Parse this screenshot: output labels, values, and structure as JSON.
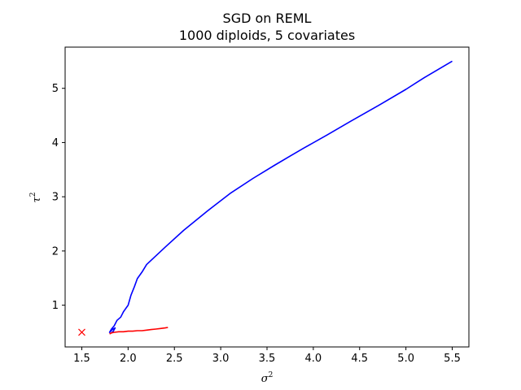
{
  "chart_data": {
    "type": "line",
    "title": "SGD on REML",
    "subtitle": "1000 diploids, 5 covariates",
    "xlabel": "σ",
    "xlabel_sup": "2",
    "ylabel": "τ",
    "ylabel_sup": "2",
    "xlim": [
      1.32,
      5.68
    ],
    "ylim": [
      0.23,
      5.76
    ],
    "x_ticks": [
      1.5,
      2.0,
      2.5,
      3.0,
      3.5,
      4.0,
      4.5,
      5.0,
      5.5
    ],
    "x_tick_labels": [
      "1.5",
      "2.0",
      "2.5",
      "3.0",
      "3.5",
      "4.0",
      "4.5",
      "5.0",
      "5.5"
    ],
    "y_ticks": [
      1,
      2,
      3,
      4,
      5
    ],
    "y_tick_labels": [
      "1",
      "2",
      "3",
      "4",
      "5"
    ],
    "grid": false,
    "legend": "none",
    "series": [
      {
        "color": "#0000ff",
        "x": [
          5.5,
          5.2,
          5.0,
          4.7,
          4.4,
          4.15,
          3.9,
          3.75,
          3.58,
          3.35,
          3.1,
          2.85,
          2.6,
          2.4,
          2.2,
          2.15,
          2.1,
          2.07,
          2.03,
          2.0,
          1.95,
          1.92,
          1.88,
          1.85,
          1.82,
          1.8,
          1.83,
          1.86,
          1.84,
          1.82,
          1.81
        ],
        "y": [
          5.5,
          5.2,
          4.98,
          4.68,
          4.39,
          4.14,
          3.9,
          3.75,
          3.58,
          3.34,
          3.06,
          2.73,
          2.38,
          2.07,
          1.75,
          1.61,
          1.49,
          1.35,
          1.18,
          1.0,
          0.88,
          0.78,
          0.72,
          0.62,
          0.56,
          0.5,
          0.55,
          0.58,
          0.52,
          0.49,
          0.48
        ]
      },
      {
        "color": "#ff0000",
        "x": [
          1.8,
          1.82,
          1.85,
          1.9,
          1.95,
          2.0,
          2.05,
          2.1,
          2.15,
          2.2,
          2.25,
          2.3,
          2.35,
          2.4,
          2.43
        ],
        "y": [
          0.47,
          0.49,
          0.5,
          0.51,
          0.51,
          0.52,
          0.52,
          0.53,
          0.53,
          0.54,
          0.55,
          0.56,
          0.57,
          0.58,
          0.59
        ]
      }
    ],
    "markers": [
      {
        "symbol": "x",
        "color": "#ff0000",
        "x": 1.5,
        "y": 0.5
      }
    ]
  }
}
